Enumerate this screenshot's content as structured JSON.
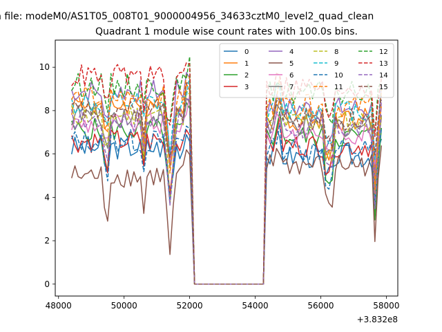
{
  "figure": {
    "suptitle": "n file: modeM0/AS1T05_008T01_9000004956_34633cztM0_level2_quad_clean",
    "offset_label": "+3.832e8"
  },
  "chart_data": {
    "type": "line",
    "title": "Quadrant 1 module wise count rates with 100.0s bins.",
    "xlabel": "",
    "ylabel": "",
    "x_offset": 383200000,
    "xlim": [
      47900,
      58350
    ],
    "ylim": [
      -0.55,
      11.25
    ],
    "x_ticks": [
      48000,
      50000,
      52000,
      54000,
      56000,
      58000
    ],
    "x_tick_labels": [
      "48000",
      "50000",
      "52000",
      "54000",
      "56000",
      "58000"
    ],
    "y_ticks": [
      0,
      2,
      4,
      6,
      8,
      10
    ],
    "y_tick_labels": [
      "0",
      "2",
      "4",
      "6",
      "8",
      "10"
    ],
    "grid": false,
    "legend_position": "top-right",
    "legend_columns": 4,
    "gap": {
      "start": 52150,
      "end": 54250,
      "value": 0
    },
    "x_segment_1": [
      48400,
      52050
    ],
    "x_segment_2": [
      54350,
      57900
    ],
    "bin_width": 100,
    "series": [
      {
        "name": "0",
        "color": "#1f77b4",
        "dash": "solid",
        "mean_1": 6.3,
        "mean_2": 5.9,
        "end_1": 6.0,
        "start_2": 6.1
      },
      {
        "name": "1",
        "color": "#ff7f0e",
        "dash": "solid",
        "mean_1": 8.3,
        "mean_2": 7.6,
        "end_1": 8.6,
        "start_2": 8.0
      },
      {
        "name": "2",
        "color": "#2ca02c",
        "dash": "solid",
        "mean_1": 7.1,
        "mean_2": 6.8,
        "end_1": 7.6,
        "start_2": 6.7
      },
      {
        "name": "3",
        "color": "#d62728",
        "dash": "solid",
        "mean_1": 6.6,
        "mean_2": 6.4,
        "end_1": 7.0,
        "start_2": 6.5
      },
      {
        "name": "4",
        "color": "#9467bd",
        "dash": "solid",
        "mean_1": 8.9,
        "mean_2": 8.1,
        "end_1": 9.6,
        "start_2": 8.4
      },
      {
        "name": "5",
        "color": "#8c564b",
        "dash": "solid",
        "mean_1": 5.0,
        "mean_2": 5.5,
        "end_1": 5.4,
        "start_2": 6.0
      },
      {
        "name": "6",
        "color": "#e377c2",
        "dash": "solid",
        "mean_1": 7.4,
        "mean_2": 7.0,
        "end_1": 7.6,
        "start_2": 7.3
      },
      {
        "name": "7",
        "color": "#7f7f7f",
        "dash": "solid",
        "mean_1": 7.8,
        "mean_2": 7.3,
        "end_1": 8.0,
        "start_2": 7.6
      },
      {
        "name": "8",
        "color": "#bcbd22",
        "dash": "dash",
        "mean_1": 7.8,
        "mean_2": 7.5,
        "end_1": 8.2,
        "start_2": 7.7
      },
      {
        "name": "9",
        "color": "#17becf",
        "dash": "dash",
        "mean_1": 8.3,
        "mean_2": 8.0,
        "end_1": 8.9,
        "start_2": 8.3
      },
      {
        "name": "10",
        "color": "#1f77b4",
        "dash": "dash",
        "mean_1": 6.6,
        "mean_2": 6.2,
        "end_1": 6.8,
        "start_2": 6.4
      },
      {
        "name": "11",
        "color": "#ff7f0e",
        "dash": "dash",
        "mean_1": 8.6,
        "mean_2": 8.2,
        "end_1": 9.0,
        "start_2": 8.5
      },
      {
        "name": "12",
        "color": "#2ca02c",
        "dash": "dash",
        "mean_1": 9.2,
        "mean_2": 8.8,
        "end_1": 9.6,
        "start_2": 9.0
      },
      {
        "name": "13",
        "color": "#d62728",
        "dash": "dash",
        "mean_1": 9.6,
        "mean_2": 9.1,
        "end_1": 10.0,
        "start_2": 9.4
      },
      {
        "name": "14",
        "color": "#9467bd",
        "dash": "dash",
        "mean_1": 7.6,
        "mean_2": 7.2,
        "end_1": 8.0,
        "start_2": 7.4
      },
      {
        "name": "15",
        "color": "#8c564b",
        "dash": "dash",
        "mean_1": 8.0,
        "mean_2": 7.6,
        "end_1": 8.5,
        "start_2": 7.8
      }
    ]
  }
}
